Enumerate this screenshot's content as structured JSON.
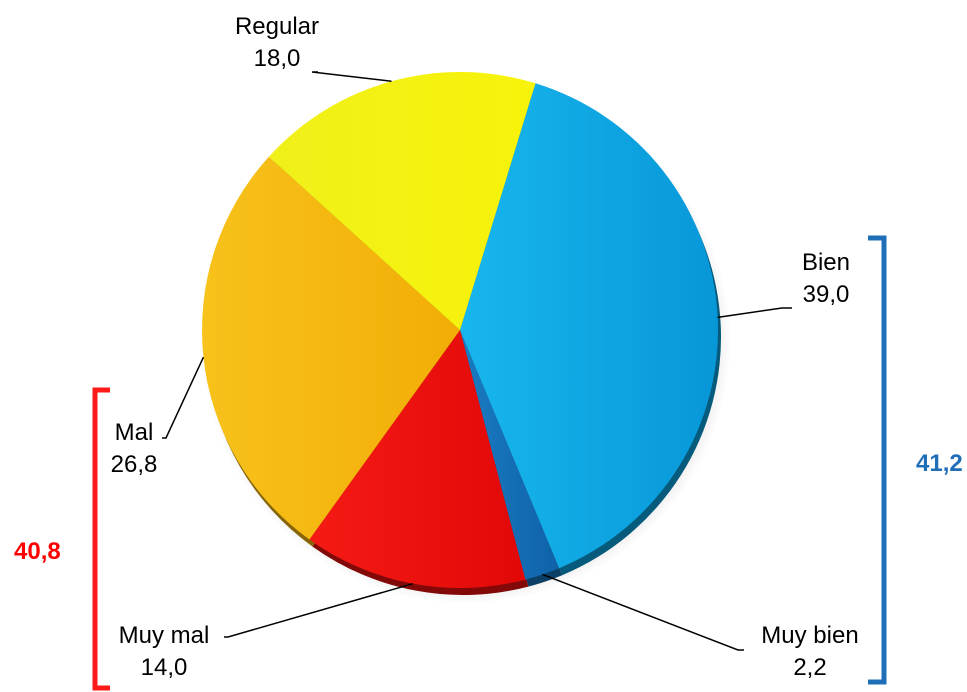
{
  "chart_data": {
    "type": "pie",
    "categories": [
      "Bien",
      "Muy bien",
      "Muy mal",
      "Mal",
      "Regular"
    ],
    "values": [
      39.0,
      2.2,
      14.0,
      26.8,
      18.0
    ],
    "value_labels": [
      "39,0",
      "2,2",
      "14,0",
      "26,8",
      "18,0"
    ],
    "colors": [
      "#0aa5e2",
      "#1472b8",
      "#ee1010",
      "#f5b80e",
      "#f4f20d"
    ],
    "start_angle_deg": 17,
    "legend": "none",
    "groups": [
      {
        "value": "41,2",
        "color": "#1f6fb8",
        "members": [
          "Bien",
          "Muy bien"
        ]
      },
      {
        "value": "40,8",
        "color": "#ff0000",
        "members": [
          "Mal",
          "Muy mal"
        ]
      }
    ]
  }
}
